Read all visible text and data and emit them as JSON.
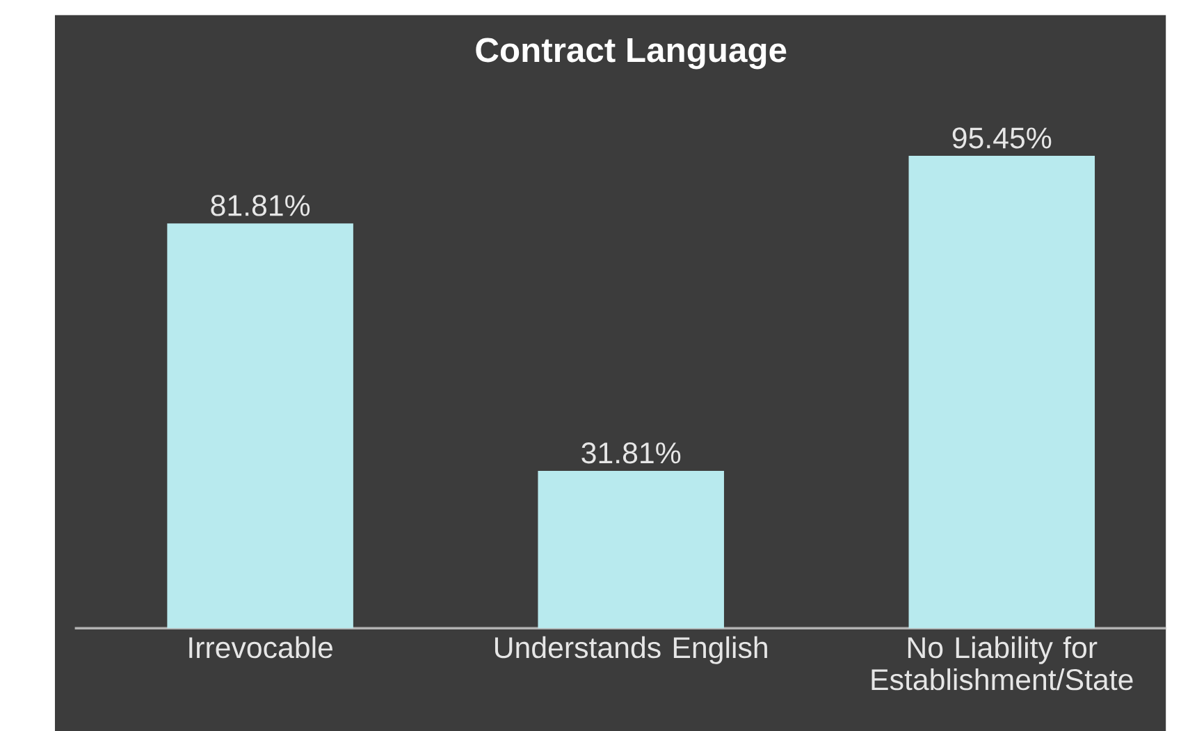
{
  "chart_data": {
    "type": "bar",
    "title": "Contract Language",
    "categories": [
      "Irrevocable",
      "Understands English",
      "No Liability for Establishment/State"
    ],
    "values": [
      81.81,
      31.81,
      95.45
    ],
    "value_labels": [
      "81.81%",
      "31.81%",
      "95.45%"
    ],
    "color": "#b8eaee",
    "tick_labels": "x"
  }
}
